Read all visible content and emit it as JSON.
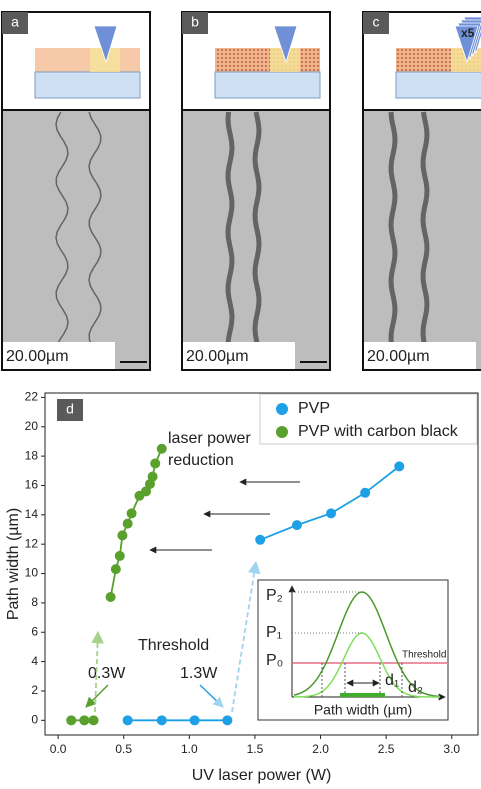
{
  "panels": [
    {
      "label": "a",
      "scale": "20.00µm"
    },
    {
      "label": "b",
      "scale": "20.00µm"
    },
    {
      "label": "c",
      "scale": "20.00µm",
      "note": "x5"
    }
  ],
  "chart_data": {
    "type": "scatter",
    "panel_label": "d",
    "xlabel": "UV laser power (W)",
    "ylabel": "Path width (µm)",
    "xlim": [
      -0.1,
      3.2
    ],
    "ylim": [
      -1,
      22.3
    ],
    "xticks": [
      {
        "value": 0,
        "label": "0.0"
      },
      {
        "value": 0.5,
        "label": "0.5"
      },
      {
        "value": 1,
        "label": "1.0"
      },
      {
        "value": 1.5,
        "label": "1.5"
      },
      {
        "value": 2,
        "label": "2.0"
      },
      {
        "value": 2.5,
        "label": "2.5"
      },
      {
        "value": 3,
        "label": "3.0"
      }
    ],
    "yticks": [
      0,
      2,
      4,
      6,
      8,
      10,
      12,
      14,
      16,
      18,
      20,
      22
    ],
    "legend": "upper right",
    "series": [
      {
        "name": "PVP",
        "color": "#1ea0e6",
        "x": [
          0.53,
          0.79,
          1.04,
          1.29,
          1.54,
          1.82,
          2.08,
          2.34,
          2.6
        ],
        "values": [
          0,
          0,
          0,
          0,
          12.3,
          13.3,
          14.1,
          15.5,
          17.3
        ]
      },
      {
        "name": "PVP with carbon black",
        "color": "#5aa02c",
        "x": [
          0.1,
          0.2,
          0.27,
          0.4,
          0.44,
          0.47,
          0.49,
          0.53,
          0.56,
          0.62,
          0.67,
          0.7,
          0.72,
          0.74,
          0.79
        ],
        "values": [
          0,
          0,
          0,
          8.4,
          10.3,
          11.2,
          12.6,
          13.4,
          14.1,
          15.3,
          15.6,
          16.1,
          16.6,
          17.5,
          18.5
        ]
      }
    ],
    "annotations": {
      "reduction": [
        "laser power",
        "reduction"
      ],
      "threshold": "Threshold",
      "green_threshold": "0.3W",
      "blue_threshold": "1.3W"
    },
    "inset": {
      "p2": "P₂",
      "p1": "P₁",
      "p0": "P₀",
      "threshold": "Threshold",
      "d1": "d₁",
      "d2": "d₂",
      "xlabel": "Path width (µm)"
    }
  }
}
